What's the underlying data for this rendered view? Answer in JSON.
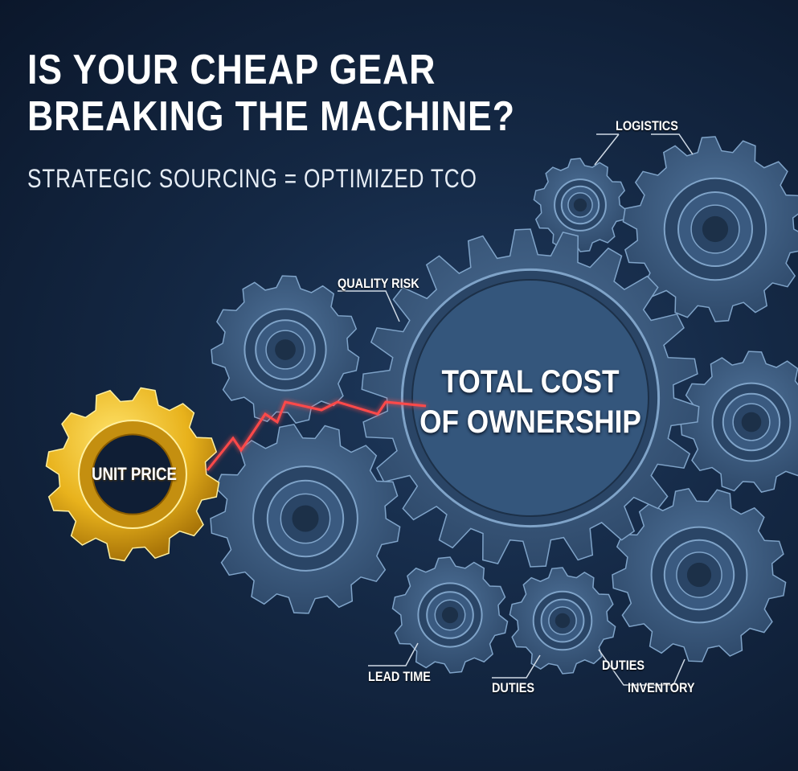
{
  "headline": {
    "line1": "IS YOUR CHEAP GEAR",
    "line2": "BREAKING THE MACHINE?",
    "subtitle": "STRATEGIC SOURCING = OPTIMIZED TCO"
  },
  "center_gear": {
    "line1": "TOTAL COST",
    "line2": "OF OWNERSHIP"
  },
  "broken_gear": {
    "label": "UNIT PRICE",
    "color": "#e8b21c"
  },
  "labels": {
    "logistics": "LOGISTICS",
    "quality_risk": "QUALITY RISK",
    "lead_time": "LEAD TIME",
    "duties_1": "DUTIES",
    "duties_2": "DUTIES",
    "inventory": "INVENTORY"
  },
  "colors": {
    "background": "#142844",
    "gear": "#3f5f82",
    "gear_edge": "#7fa3c8",
    "crack": "#ff3b3b"
  }
}
